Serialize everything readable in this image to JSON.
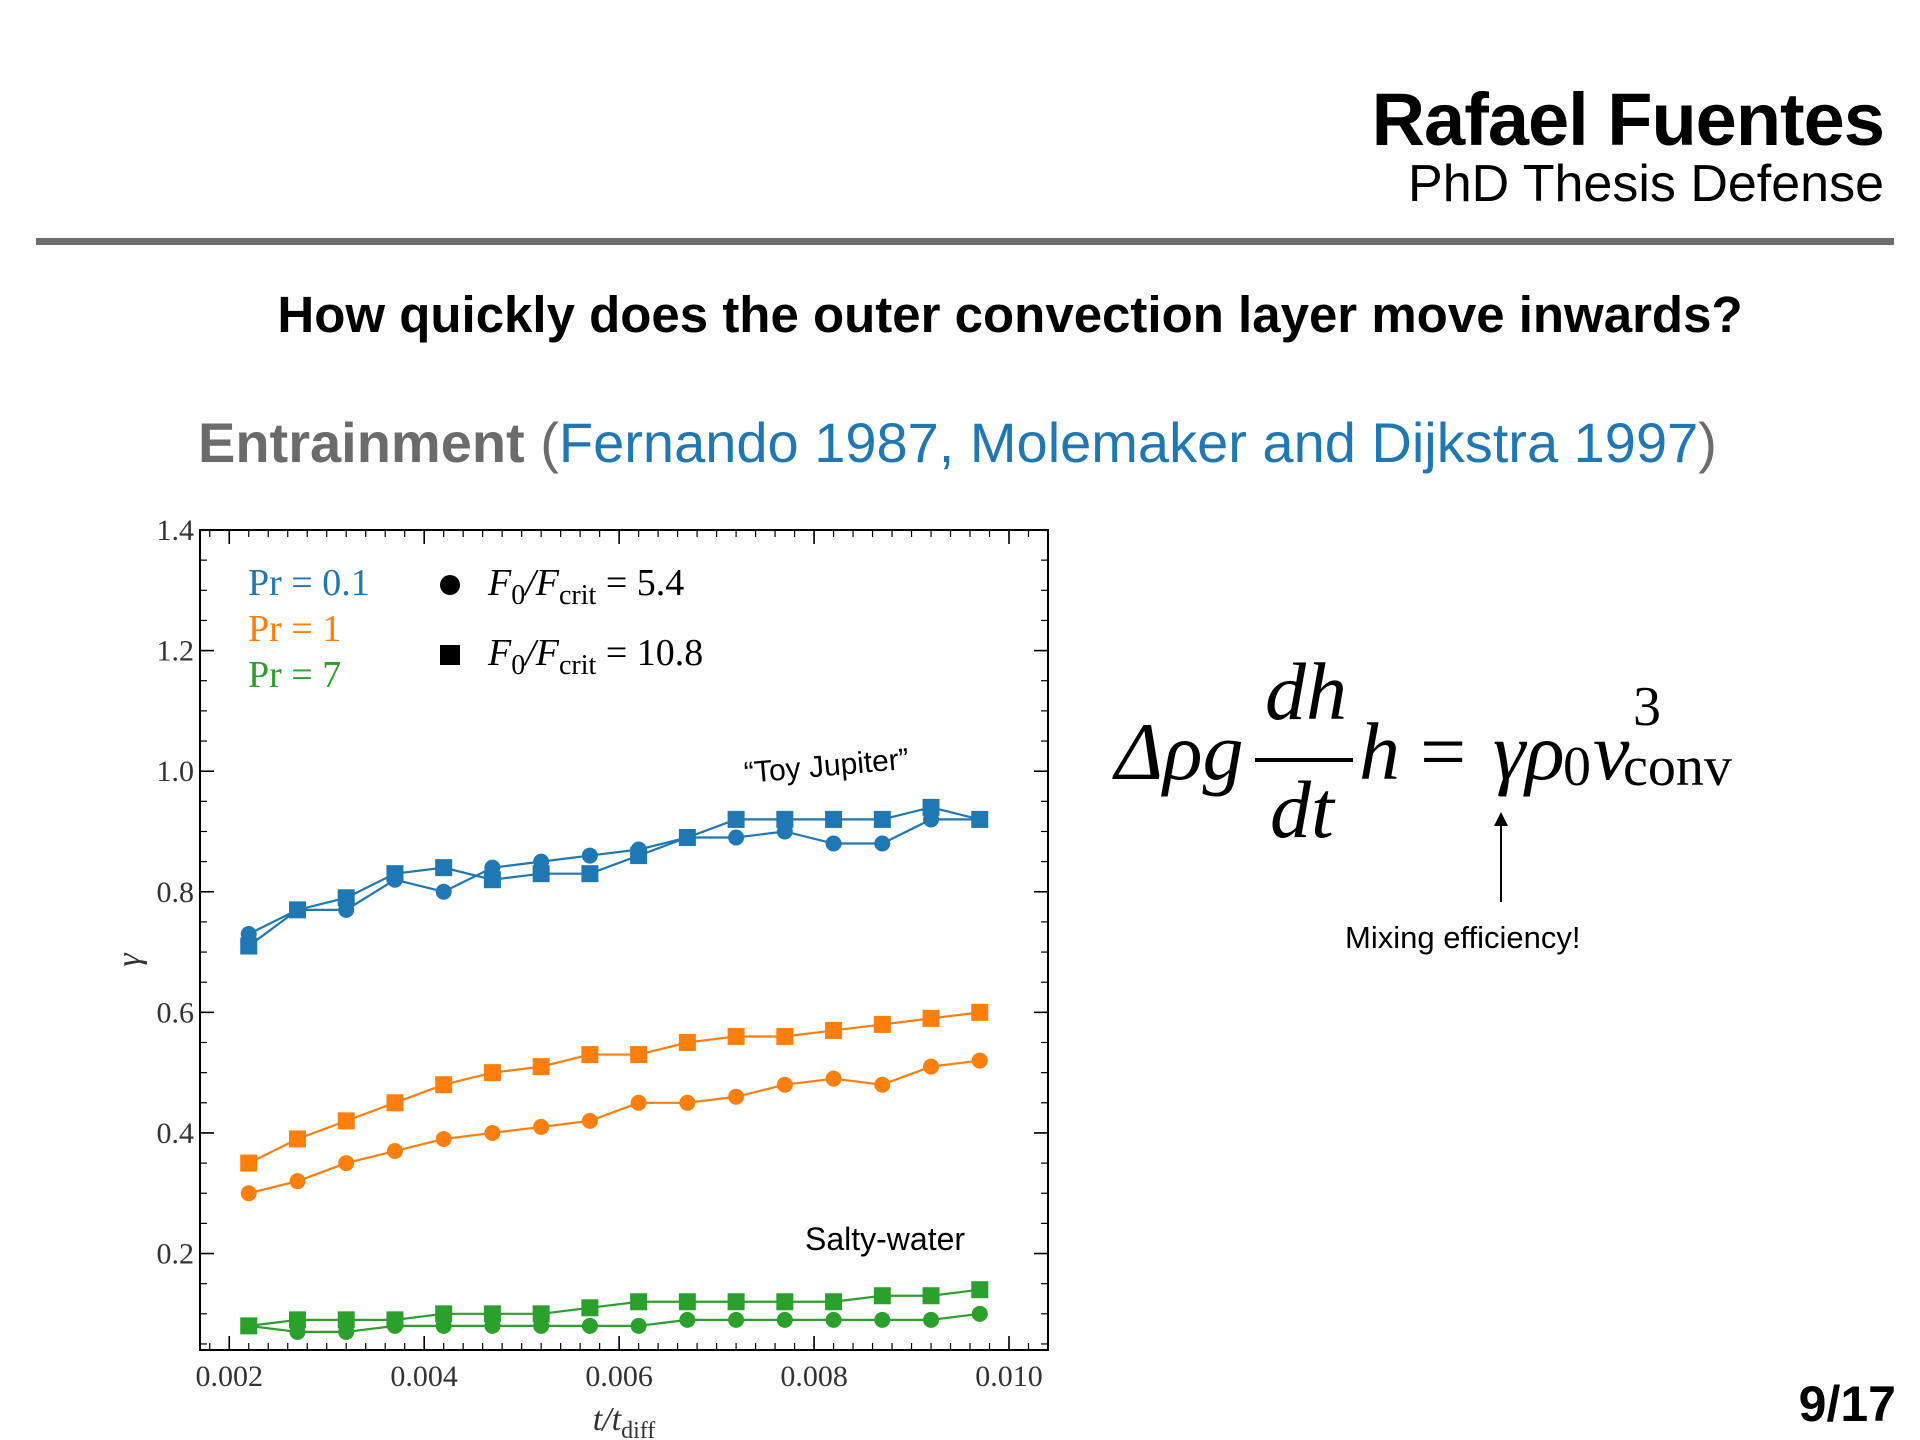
{
  "header": {
    "author": "Rafael Fuentes",
    "event": "PhD Thesis Defense"
  },
  "slide": {
    "question": "How quickly does the outer convection layer move inwards?",
    "subtitle_keyword": "Entrainment",
    "subtitle_open": "(",
    "subtitle_refs": "Fernando 1987, Molemaker and Dijkstra 1997",
    "subtitle_close": ")",
    "page": "9/17"
  },
  "equation": {
    "lhs_a": "Δρg",
    "frac_num": "dh",
    "frac_den": "dt",
    "lhs_b": "h",
    "eq_sign": "=",
    "rhs": "γρ",
    "sub0": "0",
    "v": "v",
    "sup3": "3",
    "subconv": "conv",
    "annotation": "Mixing efficiency!"
  },
  "colors": {
    "pr01": "#1f77b4",
    "pr1": "#ff7f0e",
    "pr7": "#2ca02c",
    "rule": "#6e6e6e"
  },
  "chart_data": {
    "type": "line",
    "xlabel_main": "t/t",
    "xlabel_sub": "diff",
    "ylabel": "γ",
    "xlim": [
      0.0017,
      0.0104
    ],
    "ylim": [
      0.04,
      1.4
    ],
    "xticks": [
      0.002,
      0.004,
      0.006,
      0.008,
      0.01
    ],
    "xtick_labels": [
      "0.002",
      "0.004",
      "0.006",
      "0.008",
      "0.010"
    ],
    "yticks": [
      0.2,
      0.4,
      0.6,
      0.8,
      1.0,
      1.2,
      1.4
    ],
    "ytick_labels": [
      "0.2",
      "0.4",
      "0.6",
      "0.8",
      "1.0",
      "1.2",
      "1.4"
    ],
    "x": [
      0.0022,
      0.0027,
      0.0032,
      0.0037,
      0.0042,
      0.0047,
      0.0052,
      0.0057,
      0.0062,
      0.0067,
      0.0072,
      0.0077,
      0.0082,
      0.0087,
      0.0092,
      0.0097
    ],
    "legend_colors": [
      {
        "label": "Pr = 0.1",
        "color": "#1f77b4"
      },
      {
        "label": "Pr = 1",
        "color": "#ff7f0e"
      },
      {
        "label": "Pr = 7",
        "color": "#2ca02c"
      }
    ],
    "legend_markers": [
      {
        "marker": "circle",
        "label_main": "F",
        "label_sub0": "0",
        "label_mid": "/F",
        "label_subcrit": "crit",
        "label_val": " = 5.4"
      },
      {
        "marker": "square",
        "label_main": "F",
        "label_sub0": "0",
        "label_mid": "/F",
        "label_subcrit": "crit",
        "label_val": " = 10.8"
      }
    ],
    "annotations": [
      "“Toy Jupiter”",
      "Salty-water"
    ],
    "series": [
      {
        "pr": "0.1",
        "marker": "circle",
        "color": "#1f77b4",
        "values": [
          0.73,
          0.77,
          0.77,
          0.82,
          0.8,
          0.84,
          0.85,
          0.86,
          0.87,
          0.89,
          0.89,
          0.9,
          0.88,
          0.88,
          0.92,
          0.92
        ]
      },
      {
        "pr": "0.1",
        "marker": "square",
        "color": "#1f77b4",
        "values": [
          0.71,
          0.77,
          0.79,
          0.83,
          0.84,
          0.82,
          0.83,
          0.83,
          0.86,
          0.89,
          0.92,
          0.92,
          0.92,
          0.92,
          0.94,
          0.92
        ]
      },
      {
        "pr": "1",
        "marker": "circle",
        "color": "#ff7f0e",
        "values": [
          0.3,
          0.32,
          0.35,
          0.37,
          0.39,
          0.4,
          0.41,
          0.42,
          0.45,
          0.45,
          0.46,
          0.48,
          0.49,
          0.48,
          0.51,
          0.52
        ]
      },
      {
        "pr": "1",
        "marker": "square",
        "color": "#ff7f0e",
        "values": [
          0.35,
          0.39,
          0.42,
          0.45,
          0.48,
          0.5,
          0.51,
          0.53,
          0.53,
          0.55,
          0.56,
          0.56,
          0.57,
          0.58,
          0.59,
          0.6
        ]
      },
      {
        "pr": "7",
        "marker": "circle",
        "color": "#2ca02c",
        "values": [
          0.08,
          0.07,
          0.07,
          0.08,
          0.08,
          0.08,
          0.08,
          0.08,
          0.08,
          0.09,
          0.09,
          0.09,
          0.09,
          0.09,
          0.09,
          0.1
        ]
      },
      {
        "pr": "7",
        "marker": "square",
        "color": "#2ca02c",
        "values": [
          0.08,
          0.09,
          0.09,
          0.09,
          0.1,
          0.1,
          0.1,
          0.11,
          0.12,
          0.12,
          0.12,
          0.12,
          0.12,
          0.13,
          0.13,
          0.14
        ]
      }
    ]
  }
}
